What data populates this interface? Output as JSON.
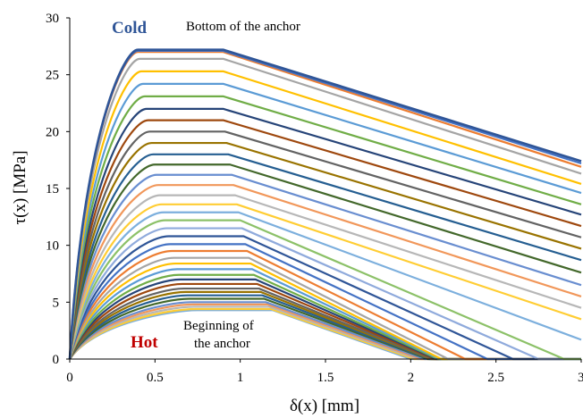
{
  "chart_data": {
    "type": "line",
    "xlabel": "δ(x) [mm]",
    "ylabel": "τ(x) [MPa]",
    "xlim": [
      0,
      3
    ],
    "ylim": [
      0,
      30
    ],
    "x_ticks": [
      "0",
      "0.5",
      "1",
      "1.5",
      "2",
      "2.5",
      "3"
    ],
    "y_ticks": [
      "0",
      "5",
      "10",
      "15",
      "20",
      "25",
      "30"
    ],
    "grid": false,
    "legend": "none",
    "annotations": {
      "cold": "Cold",
      "hot": "Hot",
      "bottom": "Bottom of the anchor",
      "beginning_line1": "Beginning of",
      "beginning_line2": "the anchor"
    },
    "colors": [
      "#2F5597",
      "#4472C4",
      "#ED7D31",
      "#A5A5A5",
      "#FFC000",
      "#5B9BD5",
      "#70AD47",
      "#264478",
      "#9E480E",
      "#636363",
      "#997300",
      "#255E91",
      "#43682B",
      "#698ED0",
      "#F1975A",
      "#B7B7B7",
      "#FFCD33",
      "#7CAFDD",
      "#8CC168",
      "#8FAADC"
    ],
    "series": [
      {
        "points": [
          [
            0,
            0
          ],
          [
            0.4,
            27.2
          ],
          [
            0.9,
            27.2
          ],
          [
            3.0,
            17.4
          ]
        ]
      },
      {
        "points": [
          [
            0,
            0
          ],
          [
            0.4,
            27.1
          ],
          [
            0.9,
            27.1
          ],
          [
            3.0,
            17.2
          ]
        ]
      },
      {
        "points": [
          [
            0,
            0
          ],
          [
            0.4,
            27.0
          ],
          [
            0.9,
            27.0
          ],
          [
            3.0,
            16.9
          ]
        ]
      },
      {
        "points": [
          [
            0,
            0
          ],
          [
            0.41,
            26.4
          ],
          [
            0.9,
            26.4
          ],
          [
            3.0,
            16.3
          ]
        ]
      },
      {
        "points": [
          [
            0,
            0
          ],
          [
            0.42,
            25.3
          ],
          [
            0.9,
            25.3
          ],
          [
            3.0,
            15.4
          ]
        ]
      },
      {
        "points": [
          [
            0,
            0
          ],
          [
            0.43,
            24.2
          ],
          [
            0.9,
            24.2
          ],
          [
            3.0,
            14.6
          ]
        ]
      },
      {
        "points": [
          [
            0,
            0
          ],
          [
            0.44,
            23.1
          ],
          [
            0.9,
            23.1
          ],
          [
            3.0,
            13.6
          ]
        ]
      },
      {
        "points": [
          [
            0,
            0
          ],
          [
            0.45,
            22.0
          ],
          [
            0.9,
            22.0
          ],
          [
            3.0,
            12.7
          ]
        ]
      },
      {
        "points": [
          [
            0,
            0
          ],
          [
            0.46,
            21.0
          ],
          [
            0.9,
            21.0
          ],
          [
            3.0,
            11.7
          ]
        ]
      },
      {
        "points": [
          [
            0,
            0
          ],
          [
            0.47,
            20.0
          ],
          [
            0.91,
            20.0
          ],
          [
            3.0,
            10.7
          ]
        ]
      },
      {
        "points": [
          [
            0,
            0
          ],
          [
            0.48,
            19.0
          ],
          [
            0.92,
            19.0
          ],
          [
            3.0,
            9.7
          ]
        ]
      },
      {
        "points": [
          [
            0,
            0
          ],
          [
            0.49,
            18.0
          ],
          [
            0.93,
            18.0
          ],
          [
            3.0,
            8.7
          ]
        ]
      },
      {
        "points": [
          [
            0,
            0
          ],
          [
            0.5,
            17.1
          ],
          [
            0.94,
            17.1
          ],
          [
            3.0,
            7.6
          ]
        ]
      },
      {
        "points": [
          [
            0,
            0
          ],
          [
            0.51,
            16.2
          ],
          [
            0.95,
            16.2
          ],
          [
            3.0,
            6.5
          ]
        ]
      },
      {
        "points": [
          [
            0,
            0
          ],
          [
            0.52,
            15.3
          ],
          [
            0.96,
            15.3
          ],
          [
            3.0,
            5.5
          ]
        ]
      },
      {
        "points": [
          [
            0,
            0
          ],
          [
            0.53,
            14.4
          ],
          [
            0.97,
            14.4
          ],
          [
            3.0,
            4.5
          ]
        ]
      },
      {
        "points": [
          [
            0,
            0
          ],
          [
            0.54,
            13.6
          ],
          [
            0.98,
            13.6
          ],
          [
            3.0,
            3.5
          ]
        ]
      },
      {
        "points": [
          [
            0,
            0
          ],
          [
            0.55,
            12.9
          ],
          [
            0.99,
            12.9
          ],
          [
            3.0,
            1.7
          ]
        ]
      },
      {
        "points": [
          [
            0,
            0
          ],
          [
            0.56,
            12.2
          ],
          [
            1.0,
            12.2
          ],
          [
            2.9,
            0
          ],
          [
            3.0,
            0
          ]
        ]
      },
      {
        "points": [
          [
            0,
            0
          ],
          [
            0.57,
            11.5
          ],
          [
            1.01,
            11.5
          ],
          [
            2.75,
            0
          ],
          [
            3.0,
            0
          ]
        ]
      },
      {
        "points": [
          [
            0,
            0
          ],
          [
            0.58,
            10.8
          ],
          [
            1.02,
            10.8
          ],
          [
            2.6,
            0
          ],
          [
            3.0,
            0
          ]
        ]
      },
      {
        "points": [
          [
            0,
            0
          ],
          [
            0.59,
            10.1
          ],
          [
            1.03,
            10.1
          ],
          [
            2.45,
            0
          ],
          [
            3.0,
            0
          ]
        ]
      },
      {
        "points": [
          [
            0,
            0
          ],
          [
            0.6,
            9.5
          ],
          [
            1.04,
            9.5
          ],
          [
            2.32,
            0
          ],
          [
            3.0,
            0
          ]
        ]
      },
      {
        "points": [
          [
            0,
            0
          ],
          [
            0.61,
            8.9
          ],
          [
            1.05,
            8.9
          ],
          [
            2.22,
            0
          ],
          [
            3.0,
            0
          ]
        ]
      },
      {
        "points": [
          [
            0,
            0
          ],
          [
            0.62,
            8.4
          ],
          [
            1.06,
            8.4
          ],
          [
            2.18,
            0
          ],
          [
            3.0,
            0
          ]
        ]
      },
      {
        "points": [
          [
            0,
            0
          ],
          [
            0.63,
            7.9
          ],
          [
            1.07,
            7.9
          ],
          [
            2.17,
            0
          ],
          [
            3.0,
            0
          ]
        ]
      },
      {
        "points": [
          [
            0,
            0
          ],
          [
            0.64,
            7.4
          ],
          [
            1.08,
            7.4
          ],
          [
            2.16,
            0
          ],
          [
            3.0,
            0
          ]
        ]
      },
      {
        "points": [
          [
            0,
            0
          ],
          [
            0.65,
            7.0
          ],
          [
            1.09,
            7.0
          ],
          [
            2.15,
            0
          ],
          [
            3.0,
            0
          ]
        ]
      },
      {
        "points": [
          [
            0,
            0
          ],
          [
            0.66,
            6.6
          ],
          [
            1.1,
            6.6
          ],
          [
            2.14,
            0
          ],
          [
            3.0,
            0
          ]
        ]
      },
      {
        "points": [
          [
            0,
            0
          ],
          [
            0.67,
            6.2
          ],
          [
            1.11,
            6.2
          ],
          [
            2.13,
            0
          ],
          [
            3.0,
            0
          ]
        ]
      },
      {
        "points": [
          [
            0,
            0
          ],
          [
            0.68,
            5.9
          ],
          [
            1.12,
            5.9
          ],
          [
            2.12,
            0
          ],
          [
            3.0,
            0
          ]
        ]
      },
      {
        "points": [
          [
            0,
            0
          ],
          [
            0.69,
            5.6
          ],
          [
            1.13,
            5.6
          ],
          [
            2.11,
            0
          ],
          [
            3.0,
            0
          ]
        ]
      },
      {
        "points": [
          [
            0,
            0
          ],
          [
            0.7,
            5.3
          ],
          [
            1.14,
            5.3
          ],
          [
            2.1,
            0
          ],
          [
            3.0,
            0
          ]
        ]
      },
      {
        "points": [
          [
            0,
            0
          ],
          [
            0.71,
            5.0
          ],
          [
            1.15,
            5.0
          ],
          [
            2.08,
            0
          ],
          [
            3.0,
            0
          ]
        ]
      },
      {
        "points": [
          [
            0,
            0
          ],
          [
            0.72,
            4.8
          ],
          [
            1.16,
            4.8
          ],
          [
            2.06,
            0
          ],
          [
            3.0,
            0
          ]
        ]
      },
      {
        "points": [
          [
            0,
            0
          ],
          [
            0.73,
            4.6
          ],
          [
            1.17,
            4.6
          ],
          [
            2.04,
            0
          ],
          [
            3.0,
            0
          ]
        ]
      },
      {
        "points": [
          [
            0,
            0
          ],
          [
            0.74,
            4.4
          ],
          [
            1.18,
            4.4
          ],
          [
            2.02,
            0
          ],
          [
            3.0,
            0
          ]
        ]
      },
      {
        "points": [
          [
            0,
            0
          ],
          [
            0.75,
            4.3
          ],
          [
            1.19,
            4.3
          ],
          [
            2.0,
            0
          ],
          [
            3.0,
            0
          ]
        ]
      }
    ]
  }
}
